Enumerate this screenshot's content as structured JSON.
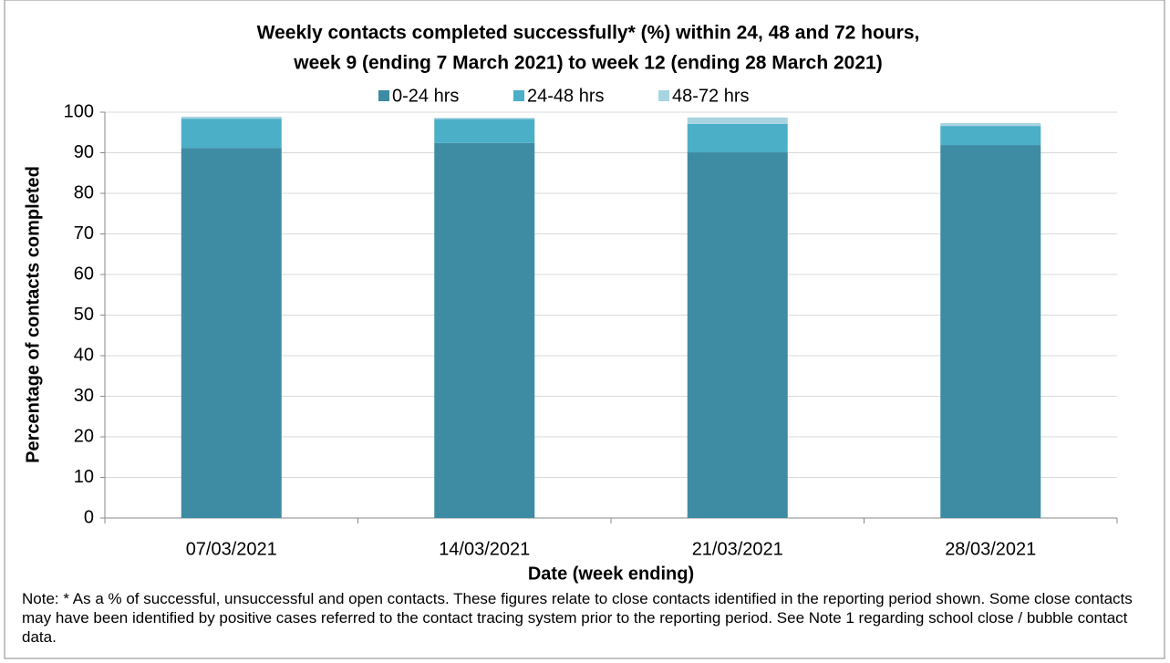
{
  "chart_data": {
    "type": "stacked_bar",
    "title": [
      "Weekly contacts completed successfully* (%) within 24, 48 and 72 hours,",
      "week 9 (ending 7 March 2021) to week 12 (ending 28 March 2021)"
    ],
    "xlabel": "Date (week ending)",
    "ylabel": "Percentage of contacts completed",
    "categories": [
      "07/03/2021",
      "14/03/2021",
      "21/03/2021",
      "28/03/2021"
    ],
    "series": [
      {
        "name": "0-24 hrs",
        "color": "#3d8ca3",
        "values": [
          91.2,
          92.4,
          90.1,
          91.9
        ]
      },
      {
        "name": "24-48 hrs",
        "color": "#4bafc8",
        "values": [
          7.2,
          5.9,
          7.0,
          4.7
        ]
      },
      {
        "name": "48-72 hrs",
        "color": "#a8d3e0",
        "values": [
          0.5,
          0.3,
          1.6,
          0.7
        ]
      }
    ],
    "ylim": [
      0,
      100
    ],
    "yticks": [
      0,
      10,
      20,
      30,
      40,
      50,
      60,
      70,
      80,
      90,
      100
    ],
    "grid": true,
    "legend": "top",
    "note": "Note: * As a % of successful, unsuccessful and open contacts. These figures relate to close contacts identified in the reporting period shown. Some close contacts may have been identified by positive cases referred to the contact tracing system prior to the reporting period. See Note 1 regarding school close / bubble contact data."
  }
}
